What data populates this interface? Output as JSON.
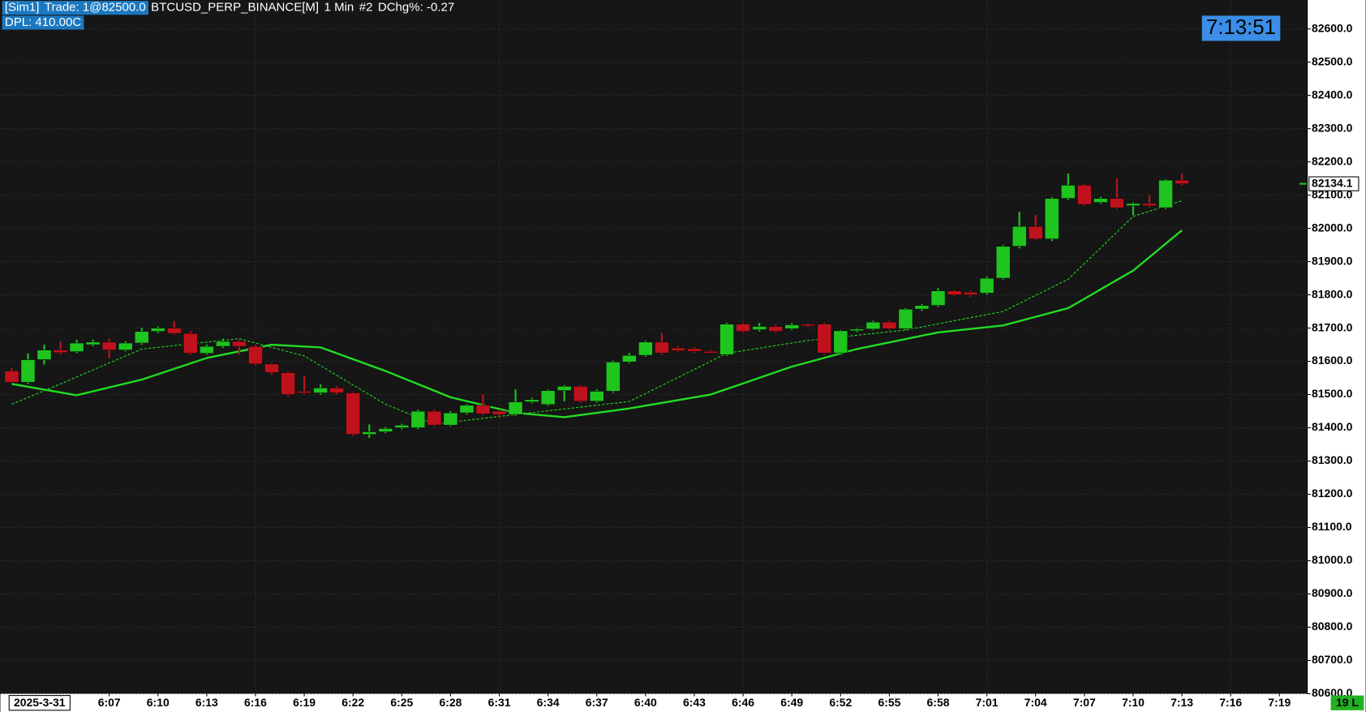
{
  "chart_data": {
    "type": "candlestick",
    "header": {
      "account": "[Sim1]",
      "trade": "Trade: 1@82500.0",
      "symbol": "BTCUSD_PERP_BINANCE[M]",
      "interval": "1 Min",
      "chart_number": "#2",
      "change": "DChg%: -0.27",
      "dpl": "DPL: 410.00C",
      "clock": "7:13:51",
      "date": "2025-3-31",
      "status": "19 L"
    },
    "x": [
      "6:01",
      "6:02",
      "6:03",
      "6:04",
      "6:05",
      "6:06",
      "6:07",
      "6:08",
      "6:09",
      "6:10",
      "6:11",
      "6:12",
      "6:13",
      "6:14",
      "6:15",
      "6:16",
      "6:17",
      "6:18",
      "6:19",
      "6:20",
      "6:21",
      "6:22",
      "6:23",
      "6:24",
      "6:25",
      "6:26",
      "6:27",
      "6:28",
      "6:29",
      "6:30",
      "6:31",
      "6:32",
      "6:33",
      "6:34",
      "6:35",
      "6:36",
      "6:37",
      "6:38",
      "6:39",
      "6:40",
      "6:41",
      "6:42",
      "6:43",
      "6:44",
      "6:45",
      "6:46",
      "6:47",
      "6:48",
      "6:49",
      "6:50",
      "6:51",
      "6:52",
      "6:53",
      "6:54",
      "6:55",
      "6:56",
      "6:57",
      "6:58",
      "6:59",
      "7:00",
      "7:01",
      "7:02",
      "7:03",
      "7:04",
      "7:05",
      "7:06",
      "7:07",
      "7:08",
      "7:09",
      "7:10",
      "7:11",
      "7:12",
      "7:13"
    ],
    "open": [
      81571,
      81537,
      81605,
      81634,
      81629,
      81650,
      81658,
      81634,
      81655,
      81690,
      81700,
      81684,
      81624,
      81645,
      81660,
      81645,
      81592,
      81566,
      81510,
      81505,
      81520,
      81505,
      81380,
      81388,
      81400,
      81400,
      81450,
      81408,
      81445,
      81468,
      81450,
      81440,
      81478,
      81470,
      81512,
      81525,
      81480,
      81510,
      81598,
      81618,
      81658,
      81640,
      81638,
      81630,
      81620,
      81712,
      81695,
      81705,
      81698,
      81712,
      81712,
      81625,
      81692,
      81697,
      81718,
      81698,
      81757,
      81768,
      81812,
      81808,
      81805,
      81850,
      81946,
      82006,
      81968,
      82090,
      82130,
      82078,
      82090,
      82068,
      82075,
      82062,
      82145
    ],
    "high": [
      81580,
      81624,
      81650,
      81660,
      81665,
      81665,
      81668,
      81660,
      81700,
      81705,
      81720,
      81690,
      81650,
      81668,
      81665,
      81650,
      81595,
      81570,
      81555,
      81530,
      81525,
      81508,
      81410,
      81402,
      81412,
      81455,
      81455,
      81450,
      81472,
      81500,
      81455,
      81515,
      81490,
      81515,
      81528,
      81528,
      81515,
      81602,
      81625,
      81662,
      81685,
      81645,
      81642,
      81634,
      81716,
      81716,
      81715,
      81710,
      81715,
      81714,
      81716,
      81695,
      81700,
      81722,
      81722,
      81760,
      81772,
      81820,
      81815,
      81812,
      81855,
      81950,
      82050,
      82040,
      82094,
      82165,
      82134,
      82095,
      82150,
      82078,
      82100,
      82148,
      82165
    ],
    "low": [
      81535,
      81532,
      81590,
      81620,
      81625,
      81645,
      81610,
      81630,
      81650,
      81685,
      81680,
      81620,
      81620,
      81640,
      81620,
      81588,
      81560,
      81495,
      81500,
      81500,
      81500,
      81376,
      81370,
      81384,
      81396,
      81396,
      81404,
      81404,
      81440,
      81438,
      81430,
      81436,
      81474,
      81466,
      81480,
      81476,
      81476,
      81506,
      81594,
      81614,
      81620,
      81628,
      81626,
      81624,
      81616,
      81686,
      81690,
      81686,
      81694,
      81704,
      81620,
      81620,
      81688,
      81694,
      81694,
      81694,
      81752,
      81764,
      81796,
      81794,
      81800,
      81846,
      81940,
      81964,
      81962,
      82085,
      82068,
      82074,
      82058,
      82040,
      82064,
      82058,
      82130
    ],
    "close": [
      81537,
      81605,
      81634,
      81626,
      81655,
      81658,
      81634,
      81655,
      81690,
      81700,
      81684,
      81624,
      81645,
      81660,
      81645,
      81592,
      81566,
      81500,
      81505,
      81520,
      81505,
      81380,
      81388,
      81398,
      81408,
      81450,
      81408,
      81445,
      81468,
      81442,
      81440,
      81478,
      81485,
      81512,
      81525,
      81480,
      81510,
      81598,
      81618,
      81658,
      81625,
      81632,
      81630,
      81628,
      81712,
      81690,
      81705,
      81690,
      81710,
      81708,
      81625,
      81692,
      81697,
      81718,
      81698,
      81757,
      81768,
      81812,
      81800,
      81800,
      81850,
      81946,
      82006,
      81968,
      82090,
      82130,
      82072,
      82090,
      82062,
      82075,
      82068,
      82145,
      82134
    ],
    "up_color": "#1fc41f",
    "down_color": "#c0121c",
    "lines": [
      {
        "color": "#22dd22",
        "style": "solid",
        "x": [
          "6:01",
          "6:05",
          "6:09",
          "6:13",
          "6:17",
          "6:20",
          "6:24",
          "6:28",
          "6:32",
          "6:35",
          "6:39",
          "6:44",
          "6:49",
          "6:53",
          "6:58",
          "7:02",
          "7:06",
          "7:10",
          "7:13"
        ],
        "values": [
          81532,
          81498,
          81545,
          81610,
          81650,
          81642,
          81571,
          81492,
          81445,
          81432,
          81458,
          81500,
          81584,
          81637,
          81687,
          81708,
          81760,
          81873,
          81994
        ]
      },
      {
        "color": "#22dd22",
        "style": "dashed",
        "x": [
          "6:01",
          "6:04",
          "6:09",
          "6:15",
          "6:19",
          "6:24",
          "6:27",
          "6:32",
          "6:39",
          "6:45",
          "6:50",
          "6:56",
          "7:02",
          "7:06",
          "7:10",
          "7:13"
        ],
        "values": [
          81471,
          81532,
          81637,
          81668,
          81616,
          81471,
          81411,
          81440,
          81479,
          81624,
          81663,
          81694,
          81750,
          81847,
          82036,
          82083
        ]
      }
    ],
    "last_price": 82134.1,
    "ylim": [
      80600,
      82687
    ],
    "yticks": [
      {
        "value": 80600,
        "label": "80600.0"
      },
      {
        "value": 80700,
        "label": "80700.0"
      },
      {
        "value": 80800,
        "label": "80800.0"
      },
      {
        "value": 80900,
        "label": "80900.0"
      },
      {
        "value": 81000,
        "label": "81000.0"
      },
      {
        "value": 81100,
        "label": "81100.0"
      },
      {
        "value": 81200,
        "label": "81200.0"
      },
      {
        "value": 81300,
        "label": "81300.0"
      },
      {
        "value": 81400,
        "label": "81400.0"
      },
      {
        "value": 81500,
        "label": "81500.0"
      },
      {
        "value": 81600,
        "label": "81600.0"
      },
      {
        "value": 81700,
        "label": "81700.0"
      },
      {
        "value": 81800,
        "label": "81800.0"
      },
      {
        "value": 81900,
        "label": "81900.0"
      },
      {
        "value": 82000,
        "label": "82000.0"
      },
      {
        "value": 82100,
        "label": "82100.0"
      },
      {
        "value": 82200,
        "label": "82200.0"
      },
      {
        "value": 82300,
        "label": "82300.0"
      },
      {
        "value": 82400,
        "label": "82400.0"
      },
      {
        "value": 82500,
        "label": "82500.0"
      },
      {
        "value": 82600,
        "label": "82600.0"
      }
    ],
    "xticks": [
      "6:07",
      "6:10",
      "6:13",
      "6:16",
      "6:19",
      "6:22",
      "6:25",
      "6:28",
      "6:31",
      "6:34",
      "6:37",
      "6:40",
      "6:43",
      "6:46",
      "6:49",
      "6:52",
      "6:55",
      "6:58",
      "7:01",
      "7:04",
      "7:07",
      "7:10",
      "7:13",
      "7:16",
      "7:19"
    ],
    "grid": true
  }
}
